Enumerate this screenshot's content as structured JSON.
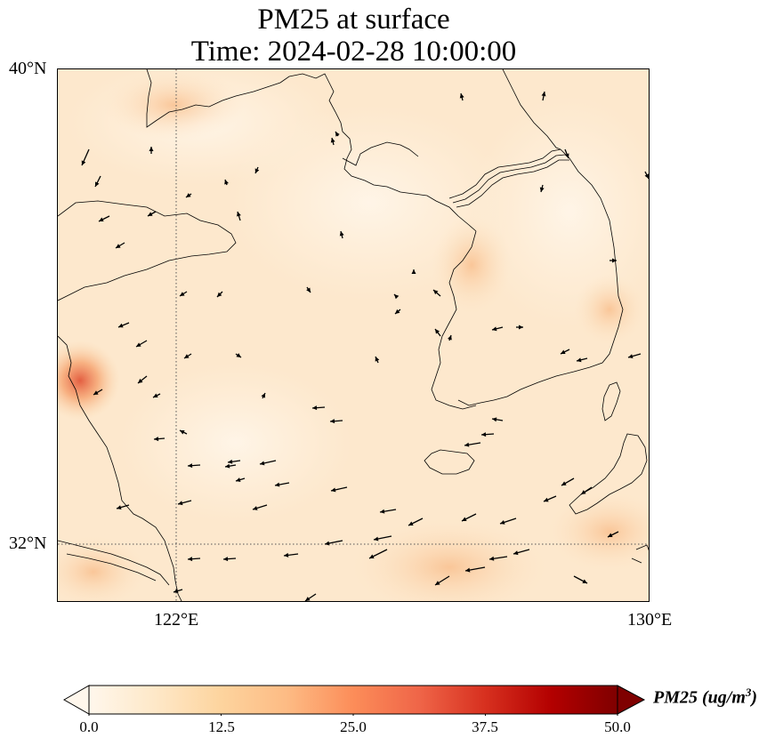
{
  "title": {
    "line1": "PM25 at surface",
    "line2": "Time: 2024-02-28 10:00:00"
  },
  "axes": {
    "lat_labels": [
      "40°N",
      "32°N"
    ],
    "lon_labels": [
      "122°E",
      "130°E"
    ],
    "lat_range": [
      31,
      40
    ],
    "lon_range": [
      120,
      130
    ]
  },
  "colorbar": {
    "label_main": "PM25 (ug/m",
    "label_sup": "3",
    "label_close": ")",
    "ticks": [
      "0.0",
      "12.5",
      "25.0",
      "37.5",
      "50.0"
    ],
    "range": [
      0,
      50
    ],
    "extend": "both",
    "colormap": "OrRd",
    "colors": [
      "#fff7ec",
      "#fee8c8",
      "#fdd49e",
      "#fdbb84",
      "#fc8d59",
      "#ef6548",
      "#d7301f",
      "#b30000",
      "#7f0000"
    ]
  },
  "map": {
    "gridlines": "dotted",
    "background_color": "#fde9cf"
  }
}
